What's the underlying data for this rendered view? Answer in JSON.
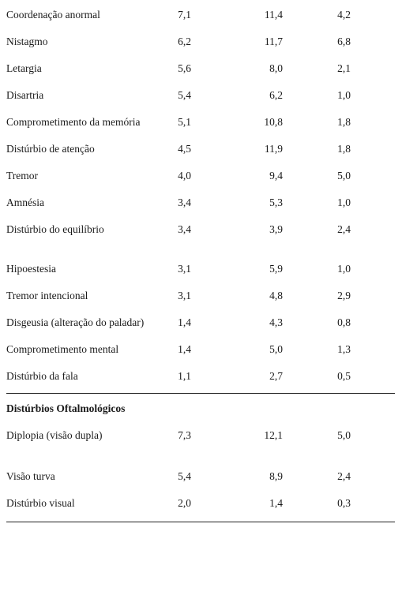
{
  "table": {
    "rows": [
      {
        "label": "Coordenação anormal",
        "v1": "7,1",
        "v2": "11,4",
        "v3": "4,2"
      },
      {
        "label": "Nistagmo",
        "v1": "6,2",
        "v2": "11,7",
        "v3": "6,8"
      },
      {
        "label": "Letargia",
        "v1": "5,6",
        "v2": "8,0",
        "v3": "2,1"
      },
      {
        "label": "Disartria",
        "v1": "5,4",
        "v2": "6,2",
        "v3": "1,0"
      },
      {
        "label": "Comprometimento da memória",
        "v1": "5,1",
        "v2": "10,8",
        "v3": "1,8"
      },
      {
        "label": "Distúrbio de atenção",
        "v1": "4,5",
        "v2": "11,9",
        "v3": "1,8"
      },
      {
        "label": "Tremor",
        "v1": "4,0",
        "v2": "9,4",
        "v3": "5,0"
      },
      {
        "label": "Amnésia",
        "v1": "3,4",
        "v2": "5,3",
        "v3": "1,0"
      },
      {
        "label": "Distúrbio do equilíbrio",
        "v1": "3,4",
        "v2": "3,9",
        "v3": "2,4"
      },
      {
        "label": "Hipoestesia",
        "v1": "3,1",
        "v2": "5,9",
        "v3": "1,0"
      },
      {
        "label": "Tremor intencional",
        "v1": "3,1",
        "v2": "4,8",
        "v3": "2,9"
      },
      {
        "label": "Disgeusia (alteração do paladar)",
        "v1": "1,4",
        "v2": "4,3",
        "v3": "0,8"
      },
      {
        "label": "Comprometimento mental",
        "v1": "1,4",
        "v2": "5,0",
        "v3": "1,3"
      },
      {
        "label": "Distúrbio da fala",
        "v1": "1,1",
        "v2": "2,7",
        "v3": "0,5"
      }
    ],
    "section_title": "Distúrbios Oftalmológicos",
    "section_rows": [
      {
        "label": "Diplopia (visão dupla)",
        "v1": "7,3",
        "v2": "12,1",
        "v3": "5,0"
      },
      {
        "label": "Visão turva",
        "v1": "5,4",
        "v2": "8,9",
        "v3": "2,4"
      },
      {
        "label": "Distúrbio visual",
        "v1": "2,0",
        "v2": "1,4",
        "v3": "0,3"
      }
    ]
  }
}
